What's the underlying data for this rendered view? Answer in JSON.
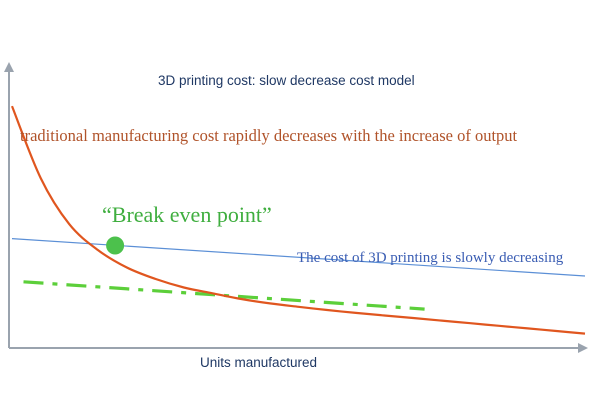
{
  "chart_data": {
    "type": "line",
    "title": "3D printing cost: slow decrease cost model",
    "xlabel": "Units manufactured",
    "ylabel": "",
    "xlim": [
      0,
      100
    ],
    "ylim": [
      0,
      100
    ],
    "grid": false,
    "series": [
      {
        "id": "traditional",
        "color": "#e0561f",
        "style": "solid",
        "x": [
          0,
          5,
          10,
          15,
          20,
          25,
          30,
          35,
          40,
          45,
          50,
          55,
          60,
          65,
          70,
          75,
          80,
          85,
          90,
          95,
          100
        ],
        "values": [
          84,
          59,
          43,
          34,
          28,
          24,
          21,
          19,
          17,
          15.5,
          14.3,
          13.2,
          12.2,
          11.3,
          10.4,
          9.5,
          8.6,
          7.7,
          6.8,
          5.9,
          5
        ]
      },
      {
        "id": "3d-printing",
        "color": "#5b8fd6",
        "style": "solid",
        "x": [
          0,
          100
        ],
        "values": [
          38,
          25
        ]
      },
      {
        "id": "3d-printing-dashed",
        "color": "#5ccf3a",
        "style": "dash-dot",
        "x": [
          2,
          72
        ],
        "values": [
          23,
          13.5
        ]
      }
    ],
    "annotations": [
      {
        "id": "traditional",
        "text": "traditional manufacturing cost rapidly decreases with the increase of output",
        "color": "#b0532a"
      },
      {
        "id": "break-even",
        "text": "“Break even point”",
        "color": "#3fae3f",
        "point": {
          "x": 18,
          "y": 35.6
        }
      },
      {
        "id": "3d-printing",
        "text": "The cost of 3D printing is slowly decreasing",
        "color": "#3a5db3"
      }
    ]
  }
}
